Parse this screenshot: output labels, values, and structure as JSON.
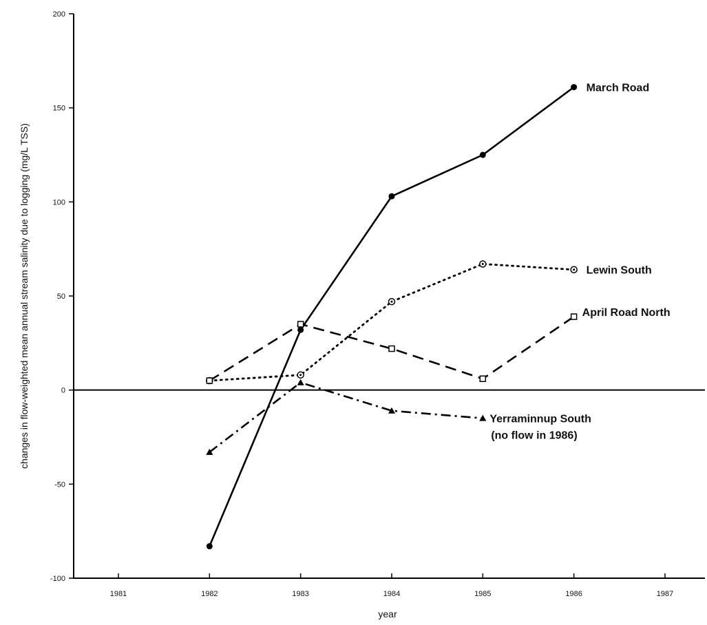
{
  "chart_data": {
    "type": "line",
    "title": "",
    "xlabel": "year",
    "ylabel": "changes in flow-weighted mean annual stream salinity due to logging (mg/L TSS)",
    "xlim": [
      1980,
      1987.5
    ],
    "ylim": [
      -100,
      200
    ],
    "x_ticks": [
      "1981",
      "1982",
      "1983",
      "1984",
      "1985",
      "1986",
      "1987"
    ],
    "y_ticks": [
      "200",
      "150",
      "100",
      "50",
      "0",
      "-50",
      "-100"
    ],
    "zero_line": true,
    "grid": false,
    "legend": "labels at line ends",
    "series": [
      {
        "name": "March Road",
        "label_lines": [
          "March Road"
        ],
        "line_style": "solid",
        "marker": "filled-circle",
        "x": [
          1982,
          1983,
          1984,
          1985,
          1986
        ],
        "values": [
          -83,
          32,
          103,
          125,
          161
        ]
      },
      {
        "name": "Lewin South",
        "label_lines": [
          "Lewin South"
        ],
        "line_style": "dotted",
        "marker": "circle-dot",
        "x": [
          1982,
          1983,
          1984,
          1985,
          1986
        ],
        "values": [
          5,
          8,
          47,
          67,
          64
        ]
      },
      {
        "name": "April Road North",
        "label_lines": [
          "April Road North"
        ],
        "line_style": "dashed",
        "marker": "open-square",
        "x": [
          1982,
          1983,
          1984,
          1985,
          1986
        ],
        "values": [
          5,
          35,
          22,
          6,
          39
        ]
      },
      {
        "name": "Yerraminnup South",
        "label_lines": [
          "Yerraminnup South",
          "(no flow in 1986)"
        ],
        "line_style": "dash-dot",
        "marker": "filled-triangle",
        "x": [
          1982,
          1983,
          1984,
          1985
        ],
        "values": [
          -33,
          4,
          -11,
          -15
        ]
      }
    ]
  }
}
